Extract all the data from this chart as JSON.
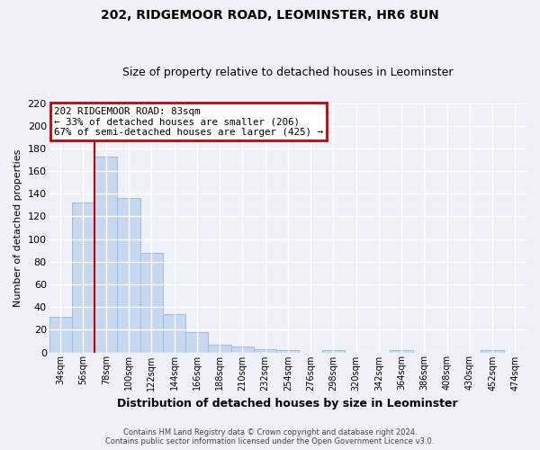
{
  "title": "202, RIDGEMOOR ROAD, LEOMINSTER, HR6 8UN",
  "subtitle": "Size of property relative to detached houses in Leominster",
  "xlabel": "Distribution of detached houses by size in Leominster",
  "ylabel": "Number of detached properties",
  "footer_line1": "Contains HM Land Registry data © Crown copyright and database right 2024.",
  "footer_line2": "Contains public sector information licensed under the Open Government Licence v3.0.",
  "bin_labels": [
    "34sqm",
    "56sqm",
    "78sqm",
    "100sqm",
    "122sqm",
    "144sqm",
    "166sqm",
    "188sqm",
    "210sqm",
    "232sqm",
    "254sqm",
    "276sqm",
    "298sqm",
    "320sqm",
    "342sqm",
    "364sqm",
    "386sqm",
    "408sqm",
    "430sqm",
    "452sqm",
    "474sqm"
  ],
  "bar_values": [
    31,
    132,
    173,
    136,
    88,
    34,
    18,
    7,
    5,
    3,
    2,
    0,
    2,
    0,
    0,
    2,
    0,
    0,
    0,
    2,
    0
  ],
  "bar_color": "#c5d8f0",
  "bar_edge_color": "#a0bcd8",
  "ylim": [
    0,
    220
  ],
  "yticks": [
    0,
    20,
    40,
    60,
    80,
    100,
    120,
    140,
    160,
    180,
    200,
    220
  ],
  "red_line_x": 1.5,
  "annotation_title": "202 RIDGEMOOR ROAD: 83sqm",
  "annotation_line1": "← 33% of detached houses are smaller (206)",
  "annotation_line2": "67% of semi-detached houses are larger (425) →",
  "annotation_box_color": "#ffffff",
  "annotation_box_edge_color": "#cc0000",
  "red_line_color": "#cc0000",
  "background_color": "#eef2f8",
  "grid_color": "#ffffff"
}
